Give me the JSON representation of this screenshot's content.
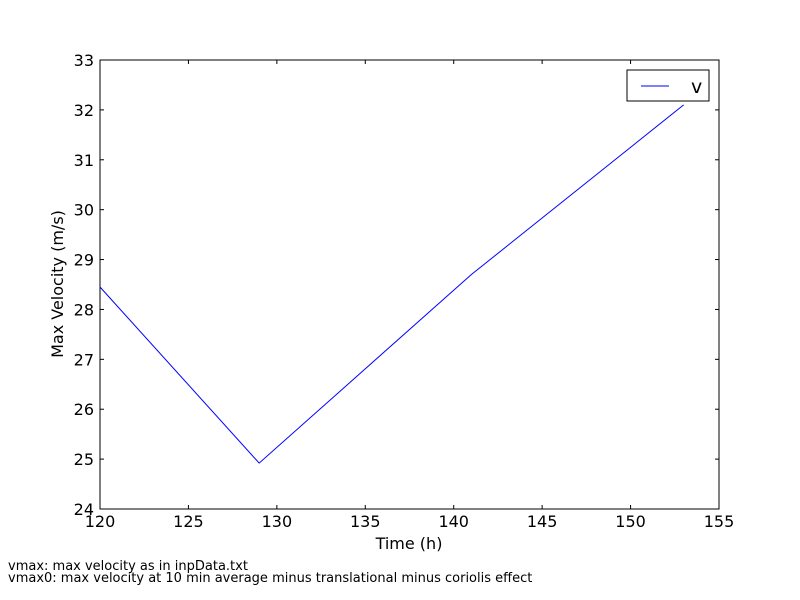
{
  "chart_data": {
    "type": "line",
    "xlabel": "Time (h)",
    "ylabel": "Max Velocity (m/s)",
    "x": [
      120,
      129,
      141,
      153
    ],
    "series": [
      {
        "name": "v",
        "color": "#0000ff",
        "values": [
          28.45,
          24.92,
          28.7,
          32.1
        ]
      }
    ],
    "xlim": [
      120,
      155
    ],
    "xticks": [
      120,
      125,
      130,
      135,
      140,
      145,
      150,
      155
    ],
    "ylim": [
      24,
      33
    ],
    "yticks": [
      24,
      25,
      26,
      27,
      28,
      29,
      30,
      31,
      32,
      33
    ],
    "grid": false,
    "legend": "upper right",
    "footnotes": [
      "vmax: max velocity as in inpData.txt",
      "vmax0: max velocity at 10 min average minus translational minus coriolis effect"
    ]
  }
}
